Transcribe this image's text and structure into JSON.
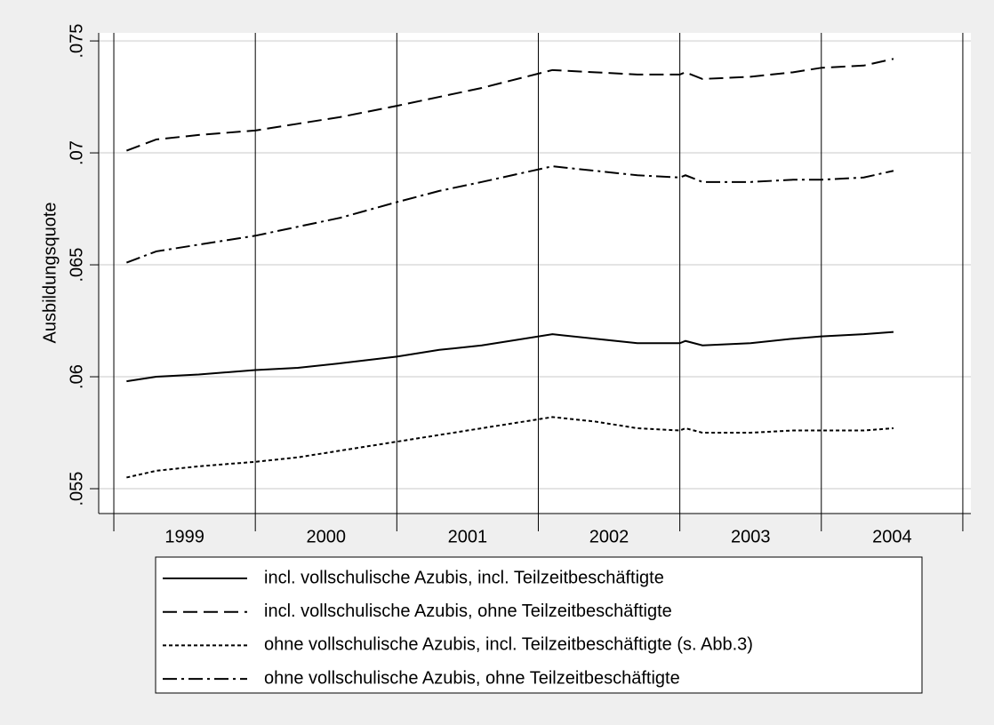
{
  "chart_data": {
    "type": "line",
    "y_label": "Ausbildungsquote",
    "x": [
      1999.09,
      1999.3,
      1999.6,
      2000.0,
      2000.3,
      2000.6,
      2001.0,
      2001.3,
      2001.6,
      2002.1,
      2002.4,
      2002.7,
      2003.0,
      2003.04,
      2003.16,
      2003.5,
      2003.8,
      2004.0,
      2004.3,
      2004.51
    ],
    "series": [
      {
        "name": "incl. vollschulische Azubis, incl. Teilzeitbeschäftigte",
        "color": "#000000",
        "line_style": "solid",
        "values": [
          0.0598,
          0.06,
          0.0601,
          0.0603,
          0.0604,
          0.0606,
          0.0609,
          0.0612,
          0.0614,
          0.0619,
          0.0617,
          0.0615,
          0.0615,
          0.0616,
          0.0614,
          0.0615,
          0.0617,
          0.0618,
          0.0619,
          0.062
        ]
      },
      {
        "name": "incl. vollschulische Azubis, ohne Teilzeitbeschäftigte",
        "color": "#000000",
        "line_style": "dashed",
        "values": [
          0.0701,
          0.0706,
          0.0708,
          0.071,
          0.0713,
          0.0716,
          0.0721,
          0.0725,
          0.0729,
          0.0737,
          0.0736,
          0.0735,
          0.0735,
          0.0736,
          0.0733,
          0.0734,
          0.0736,
          0.0738,
          0.0739,
          0.0742
        ]
      },
      {
        "name": "ohne vollschulische Azubis, incl. Teilzeitbeschäftigte (s. Abb.3)",
        "color": "#000000",
        "line_style": "dotted",
        "values": [
          0.0555,
          0.0558,
          0.056,
          0.0562,
          0.0564,
          0.0567,
          0.0571,
          0.0574,
          0.0577,
          0.0582,
          0.058,
          0.0577,
          0.0576,
          0.0577,
          0.0575,
          0.0575,
          0.0576,
          0.0576,
          0.0576,
          0.0577
        ]
      },
      {
        "name": "ohne vollschulische Azubis, ohne Teilzeitbeschäftigte",
        "color": "#000000",
        "line_style": "dashdot",
        "values": [
          0.0651,
          0.0656,
          0.0659,
          0.0663,
          0.0667,
          0.0671,
          0.0678,
          0.0683,
          0.0687,
          0.0694,
          0.0692,
          0.069,
          0.0689,
          0.069,
          0.0687,
          0.0687,
          0.0688,
          0.0688,
          0.0689,
          0.0692
        ]
      }
    ],
    "xlim": [
      1998.893,
      2005.057
    ],
    "xticks": [
      {
        "value": 1999.5,
        "label": "1999"
      },
      {
        "value": 2000.5,
        "label": "2000"
      },
      {
        "value": 2001.5,
        "label": "2001"
      },
      {
        "value": 2002.5,
        "label": "2002"
      },
      {
        "value": 2003.5,
        "label": "2003"
      },
      {
        "value": 2004.5,
        "label": "2004"
      }
    ],
    "x_separators": [
      1999,
      2000,
      2001,
      2002,
      2003,
      2004,
      2005
    ],
    "ylim": [
      0.05389,
      0.07536
    ],
    "yticks": [
      {
        "value": 0.055,
        "label": ".055"
      },
      {
        "value": 0.06,
        "label": ".06"
      },
      {
        "value": 0.065,
        "label": ".065"
      },
      {
        "value": 0.07,
        "label": ".07"
      },
      {
        "value": 0.075,
        "label": ".075"
      }
    ],
    "grid": true
  }
}
